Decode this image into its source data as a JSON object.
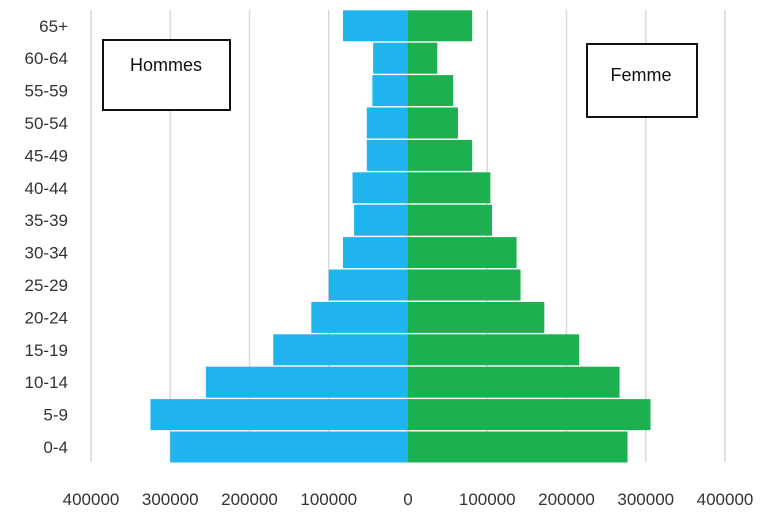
{
  "chart_data": {
    "type": "bar",
    "orientation": "horizontal",
    "categories": [
      "0-4",
      "5-9",
      "10-14",
      "15-19",
      "20-24",
      "25-29",
      "30-34",
      "35-39",
      "40-44",
      "45-49",
      "50-54",
      "55-59",
      "60-64",
      "65+"
    ],
    "series": [
      {
        "name": "Hommes",
        "color": "#1fb4ee",
        "side": "left",
        "values": [
          300000,
          325000,
          255000,
          170000,
          122000,
          100000,
          82000,
          68000,
          70000,
          52000,
          52000,
          45000,
          44000,
          82000
        ]
      },
      {
        "name": "Femme",
        "color": "#1db050",
        "side": "right",
        "values": [
          277000,
          306000,
          267000,
          216000,
          172000,
          142000,
          137000,
          106000,
          104000,
          81000,
          63000,
          57000,
          37000,
          81000
        ]
      }
    ],
    "x_ticks": [
      "400000",
      "300000",
      "200000",
      "100000",
      "0",
      "100000",
      "200000",
      "300000",
      "400000"
    ],
    "xlim": [
      -400000,
      400000
    ],
    "grid": "vertical",
    "legend_placement": "top-left and top-right boxes"
  }
}
